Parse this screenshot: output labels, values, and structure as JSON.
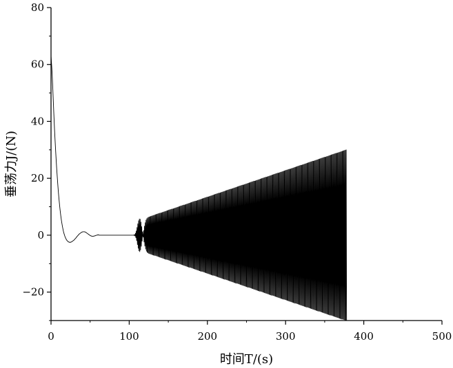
{
  "chart_data": {
    "type": "line",
    "title": "",
    "xlabel": "时间T/(s)",
    "ylabel": "垂荡力J/(N)",
    "xlim": [
      0,
      500
    ],
    "ylim": [
      -30,
      80
    ],
    "xticks": [
      0,
      100,
      200,
      300,
      400,
      500
    ],
    "yticks": [
      -20,
      0,
      20,
      40,
      60,
      80
    ],
    "x_tick_labels": [
      "0",
      "100",
      "200",
      "300",
      "400",
      "500"
    ],
    "y_tick_labels": [
      "−20",
      "0",
      "20",
      "40",
      "60",
      "80"
    ],
    "grid": false,
    "legend": "none",
    "line_color": "#000000",
    "sample_step": 0.5,
    "series": [
      {
        "values": [
          63.0,
          60.9,
          58.8,
          56.3,
          53.3,
          50.0,
          46.6,
          43.3,
          40.1,
          37.1,
          34.3,
          31.7,
          29.2,
          26.8,
          24.5,
          22.4,
          20.4,
          18.4,
          16.6,
          14.9,
          13.3,
          11.8,
          10.4,
          9.1,
          7.9,
          6.8,
          5.8,
          4.8,
          4.0,
          3.2,
          2.5,
          1.8,
          1.2,
          0.7,
          0.2,
          -0.2,
          -0.6,
          -0.9,
          -1.2,
          -1.5,
          -1.7,
          -1.9,
          -2.0,
          -2.2,
          -2.3,
          -2.4,
          -2.4,
          -2.5,
          -2.5,
          -2.5,
          -2.5,
          -2.4,
          -2.4,
          -2.3,
          -2.2,
          -2.1,
          -2.0,
          -1.9,
          -1.8,
          -1.7,
          -1.5,
          -1.4,
          -1.2,
          -1.1,
          -0.9,
          -0.7,
          -0.6,
          -0.4,
          -0.2,
          -0.1,
          0.1,
          0.2,
          0.4,
          0.5,
          0.6,
          0.7,
          0.8,
          0.9,
          1.0,
          1.1,
          1.1,
          1.2,
          1.2,
          1.2,
          1.2,
          1.2,
          1.2,
          1.1,
          1.1,
          1.0,
          0.9,
          0.8,
          0.7,
          0.6,
          0.5,
          0.4,
          0.3,
          0.2,
          0.1,
          0.0,
          -0.1,
          -0.2,
          -0.2,
          -0.3,
          -0.3,
          -0.4,
          -0.4,
          -0.4,
          -0.4,
          -0.3,
          -0.3,
          -0.3,
          -0.2,
          -0.2,
          -0.1,
          -0.1,
          0.0,
          0.0,
          0.0,
          0.1,
          0.1,
          0.1,
          0.1,
          0.0,
          0.0,
          0.0,
          0.0,
          0.0,
          0.0,
          0.0,
          0.0,
          0.0,
          0.0,
          0.0,
          0.0,
          0.0,
          0.0,
          0.0,
          0.0,
          0.0,
          0.0,
          0.0,
          0.0,
          0.0,
          0.0,
          0.0,
          0.0,
          0.0,
          0.0,
          0.0,
          0.0,
          0.0,
          0.0,
          0.0,
          0.0,
          0.0,
          0.0,
          0.0,
          0.0,
          0.0,
          0.0,
          0.0,
          0.0,
          0.0,
          0.0,
          0.0,
          0.0,
          0.0,
          0.0,
          0.0,
          0.0,
          0.0,
          0.0,
          0.0,
          0.0,
          0.0,
          0.0,
          0.0,
          0.0,
          0.0,
          0.0,
          0.0,
          0.0,
          0.0,
          0.0,
          0.0,
          0.0,
          0.0,
          0.0,
          0.0,
          0.0,
          0.0,
          0.0,
          0.0,
          0.0,
          0.0,
          0.0,
          0.0,
          0.0,
          0.0,
          0.0,
          0.0,
          0.0,
          0.0,
          0.0,
          0.0,
          0.0,
          0.0,
          0.0,
          0.0,
          0.0,
          0.0,
          0.1,
          -0.1,
          0.2,
          -0.3,
          0.7,
          -0.9,
          1.5,
          -1.9,
          2.7,
          -3.3,
          4.0,
          -4.6,
          5.1,
          -5.5,
          5.7,
          -5.8,
          5.6,
          -5.2,
          4.6,
          -3.9,
          3.0,
          -2.1,
          1.2,
          -0.2,
          -0.7,
          1.6,
          -2.4,
          3.2,
          -3.8,
          4.4,
          -4.9,
          5.3,
          -5.6,
          5.8,
          -6.0,
          6.1,
          -6.2,
          6.3,
          -6.4,
          6.4,
          -6.5,
          6.5,
          -6.6,
          6.6,
          -6.7,
          6.7,
          -6.8,
          6.8,
          -6.9,
          6.9,
          -7.0,
          7.0,
          -7.1,
          7.1,
          -7.1,
          7.2,
          -7.2,
          7.3,
          -7.3,
          7.4,
          -7.4,
          7.5,
          -7.5,
          7.6,
          -7.6,
          7.7,
          -7.7,
          7.8,
          -7.8,
          7.8,
          -7.9,
          7.9,
          -8.0,
          8.0,
          -8.1,
          8.1,
          -8.2,
          8.2,
          -8.3,
          8.3,
          -8.4,
          8.4,
          -8.5,
          8.5,
          -8.5,
          8.6,
          -8.6,
          8.7,
          -8.7,
          8.8,
          -8.8,
          8.9,
          -8.9,
          9.0,
          -9.0,
          9.1,
          -9.1,
          9.2,
          -9.2,
          9.2,
          -9.3,
          9.3,
          -9.4,
          9.4,
          -9.5,
          9.5,
          -9.6,
          9.6,
          -9.7,
          9.7,
          -9.8,
          9.8,
          -9.9,
          9.9,
          -9.9,
          10.0,
          -10.0,
          10.1,
          -10.1,
          10.2,
          -10.2,
          10.3,
          -10.3,
          10.4,
          -10.4,
          10.5,
          -10.5,
          10.6,
          -10.6,
          10.6,
          -10.7,
          10.7,
          -10.8,
          10.8,
          -10.9,
          10.9,
          -11.0,
          11.0,
          -11.1,
          11.1,
          -11.2,
          11.2,
          -11.3,
          11.3,
          -11.3,
          11.4,
          -11.4,
          11.5,
          -11.5,
          11.6,
          -11.6,
          11.7,
          -11.7,
          11.8,
          -11.8,
          11.9,
          -11.9,
          12.0,
          -12.0,
          12.0,
          -12.1,
          12.1,
          -12.2,
          12.2,
          -12.3,
          12.3,
          -12.4,
          12.4,
          -12.5,
          12.5,
          -12.6,
          12.6,
          -12.7,
          12.7,
          -12.7,
          12.8,
          -12.8,
          12.9,
          -12.9,
          13.0,
          -13.0,
          13.1,
          -13.1,
          13.2,
          -13.2,
          13.3,
          -13.3,
          13.4,
          -13.4,
          13.4,
          -13.5,
          13.5,
          -13.6,
          13.6,
          -13.7,
          13.7,
          -13.8,
          13.8,
          -13.9,
          13.9,
          -14.0,
          14.0,
          -14.1,
          14.1,
          -14.1,
          14.2,
          -14.2,
          14.3,
          -14.3,
          14.4,
          -14.4,
          14.5,
          -14.5,
          14.6,
          -14.6,
          14.7,
          -14.7,
          14.8,
          -14.8,
          14.8,
          -14.9,
          14.9,
          -15.0,
          15.0,
          -15.1,
          15.1,
          -15.2,
          15.2,
          -15.3,
          15.3,
          -15.4,
          15.4,
          -15.5,
          15.5,
          -15.5,
          15.6,
          -15.6,
          15.7,
          -15.7,
          15.8,
          -15.8,
          15.9,
          -15.9,
          16.0,
          -16.0,
          16.1,
          -16.1,
          16.2,
          -16.2,
          16.2,
          -16.3,
          16.3,
          -16.4,
          16.4,
          -16.5,
          16.5,
          -16.6,
          16.6,
          -16.7,
          16.7,
          -16.8,
          16.8,
          -16.9,
          16.9,
          -16.9,
          17.0,
          -17.0,
          17.1,
          -17.1,
          17.2,
          -17.2,
          17.3,
          -17.3,
          17.4,
          -17.4,
          17.5,
          -17.5,
          17.6,
          -17.6,
          17.6,
          -17.7,
          17.7,
          -17.8,
          17.8,
          -17.9,
          17.9,
          -18.0,
          18.0,
          -18.1,
          18.1,
          -18.2,
          18.2,
          -18.3,
          18.3,
          -18.3,
          18.4,
          -18.4,
          18.5,
          -18.5,
          18.6,
          -18.6,
          18.7,
          -18.7,
          18.8,
          -18.8,
          18.9,
          -18.9,
          19.0,
          -19.0,
          19.0,
          -19.1,
          19.1,
          -19.2,
          19.2,
          -19.3,
          19.3,
          -19.4,
          19.4,
          -19.5,
          19.5,
          -19.6,
          19.6,
          -19.7,
          19.7,
          -19.7,
          19.8,
          -19.8,
          19.9,
          -19.9,
          20.0,
          -20.0,
          20.1,
          -20.1,
          20.2,
          -20.2,
          20.3,
          -20.3,
          20.4,
          -20.4,
          20.4,
          -20.5,
          20.5,
          -20.6,
          20.6,
          -20.7,
          20.7,
          -20.8,
          20.8,
          -20.9,
          20.9,
          -21.0,
          21.0,
          -21.1,
          21.1,
          -21.1,
          21.2,
          -21.2,
          21.3,
          -21.3,
          21.4,
          -21.4,
          21.5,
          -21.5,
          21.6,
          -21.6,
          21.7,
          -21.7,
          21.8,
          -21.8,
          21.8,
          -21.9,
          21.9,
          -22.0,
          22.0,
          -22.1,
          22.1,
          -22.2,
          22.2,
          -22.3,
          22.3,
          -22.4,
          22.4,
          -22.5,
          22.5,
          -22.5,
          22.6,
          -22.6,
          22.7,
          -22.7,
          22.8,
          -22.8,
          22.9,
          -22.9,
          23.0,
          -23.0,
          23.1,
          -23.1,
          23.2,
          -23.2,
          23.2,
          -23.3,
          23.3,
          -23.4,
          23.4,
          -23.5,
          23.5,
          -23.6,
          23.6,
          -23.7,
          23.7,
          -23.8,
          23.8,
          -23.9,
          23.9,
          -23.9,
          24.0,
          -24.0,
          24.1,
          -24.1,
          24.2,
          -24.2,
          24.3,
          -24.3,
          24.4,
          -24.4,
          24.5,
          -24.5,
          24.6,
          -24.6,
          24.6,
          -24.7,
          24.7,
          -24.8,
          24.8,
          -24.9,
          24.9,
          -25.0,
          25.0,
          -25.1,
          25.1,
          -25.2,
          25.2,
          -25.3,
          25.3,
          -25.3,
          25.4,
          -25.4,
          25.5,
          -25.5,
          25.6,
          -25.6,
          25.7,
          -25.7,
          25.8,
          -25.8,
          25.9,
          -25.9,
          26.0,
          -26.0,
          26.0,
          -26.1,
          26.1,
          -26.2,
          26.2,
          -26.3,
          26.3,
          -26.4,
          26.4,
          -26.5,
          26.5,
          -26.6,
          26.6,
          -26.7,
          26.7,
          -26.7,
          26.8,
          -26.8,
          26.9,
          -26.9,
          27.0,
          -27.0,
          27.1,
          -27.1,
          27.2,
          -27.2,
          27.3,
          -27.3,
          27.4,
          -27.4,
          27.4,
          -27.5,
          27.5,
          -27.6,
          27.6,
          -27.7,
          27.7,
          -27.8,
          27.8,
          -27.9,
          27.9,
          -28.0,
          28.0,
          -28.1,
          28.1,
          -28.1,
          28.2,
          -28.2,
          28.3,
          -28.3,
          28.4,
          -28.4,
          28.5,
          -28.5,
          28.6,
          -28.6,
          28.7,
          -28.7,
          28.8,
          -28.8,
          28.8,
          -28.9,
          28.9,
          -29.0,
          29.0,
          -29.1,
          29.1,
          -29.2,
          29.2,
          -29.3,
          29.3,
          -29.4,
          29.4,
          -29.5,
          29.5,
          -29.5,
          29.6,
          -29.6,
          29.7,
          -29.7,
          29.8,
          -29.8,
          29.9,
          -29.9,
          30.0,
          -30.0
        ]
      }
    ]
  }
}
